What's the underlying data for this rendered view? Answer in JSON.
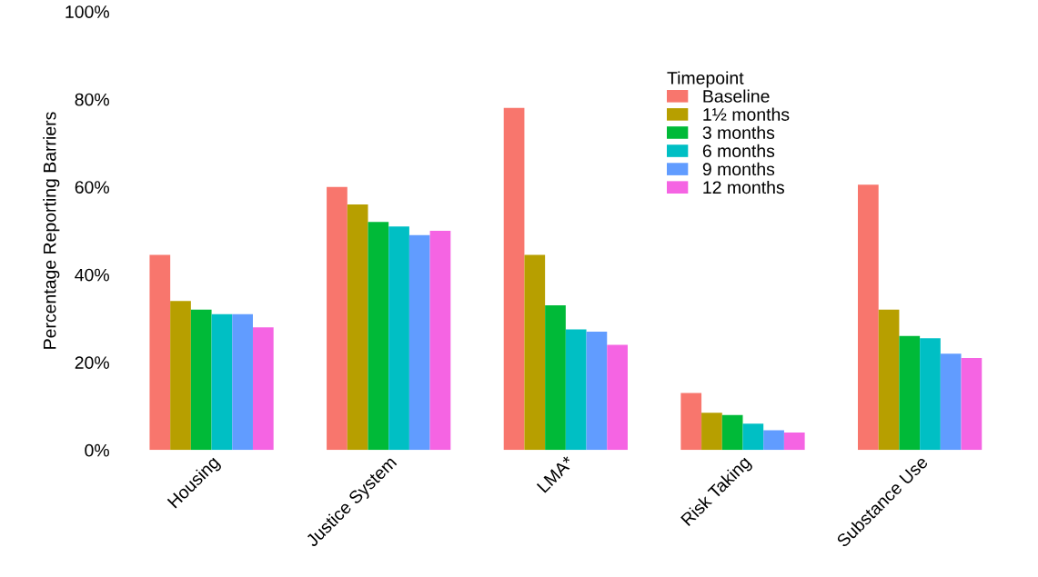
{
  "chart_data": {
    "type": "bar",
    "ylabel": "Percentage Reporting Barriers",
    "legend_title": "Timepoint",
    "categories": [
      "Housing",
      "Justice System",
      "LMA*",
      "Risk Taking",
      "Substance Use"
    ],
    "series": [
      {
        "name": "Baseline",
        "color": "#f8766d",
        "values": [
          44.5,
          60,
          78,
          13,
          60.5
        ]
      },
      {
        "name": "1½ months",
        "color": "#b79f00",
        "values": [
          34,
          56,
          44.5,
          8.5,
          32
        ]
      },
      {
        "name": "3 months",
        "color": "#00ba38",
        "values": [
          32,
          52,
          33,
          8,
          26
        ]
      },
      {
        "name": "6 months",
        "color": "#00bfc4",
        "values": [
          31,
          51,
          27.5,
          6,
          25.5
        ]
      },
      {
        "name": "9 months",
        "color": "#619cff",
        "values": [
          31,
          49,
          27,
          4.5,
          22
        ]
      },
      {
        "name": "12 months",
        "color": "#f564e3",
        "values": [
          28,
          50,
          24,
          4,
          21
        ]
      }
    ],
    "ylim": [
      0,
      100
    ],
    "yticks": [
      {
        "value": 0,
        "label": "0%"
      },
      {
        "value": 20,
        "label": "20%"
      },
      {
        "value": 40,
        "label": "40%"
      },
      {
        "value": 60,
        "label": "60%"
      },
      {
        "value": 80,
        "label": "80%"
      },
      {
        "value": 100,
        "label": "100%"
      }
    ],
    "grid": false,
    "legend": "top"
  }
}
